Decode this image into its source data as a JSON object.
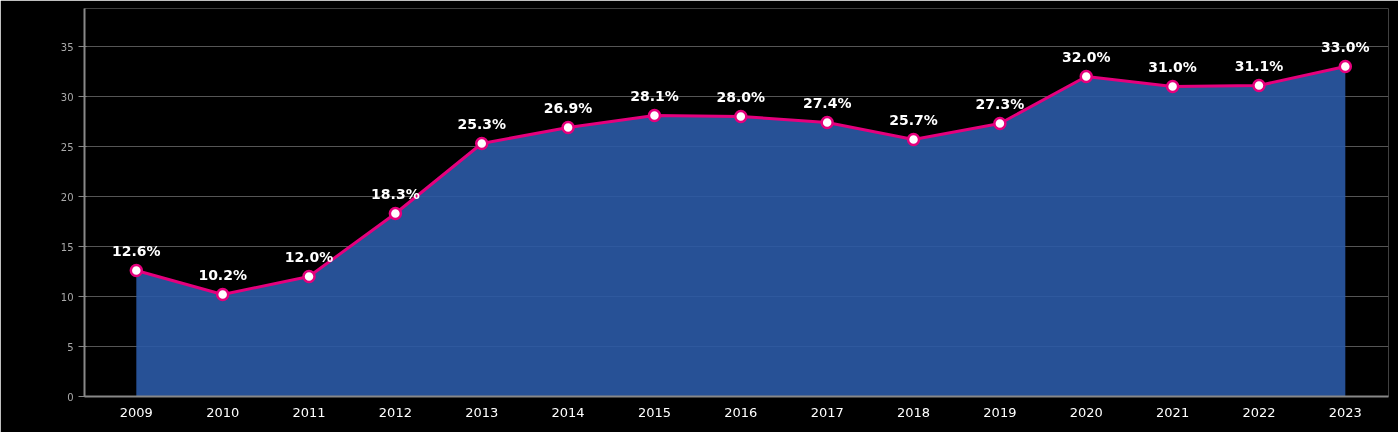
{
  "chart_data": {
    "type": "area",
    "categories": [
      "2009",
      "2010",
      "2011",
      "2012",
      "2013",
      "2014",
      "2015",
      "2016",
      "2017",
      "2018",
      "2019",
      "2020",
      "2021",
      "2022",
      "2023"
    ],
    "series": [
      {
        "color": "#2b5aa6",
        "values": [
          12.6,
          10.2,
          12.0,
          18.3,
          25.3,
          26.9,
          28.1,
          28.0,
          27.4,
          25.7,
          27.3,
          32.0,
          31.0,
          31.1,
          33.0
        ]
      },
      {
        "type": "line",
        "color": "#e5007d",
        "marker": "circle",
        "values": [
          12.6,
          10.2,
          12.0,
          18.3,
          25.3,
          26.9,
          28.1,
          28.0,
          27.4,
          25.7,
          27.3,
          32.0,
          31.0,
          31.1,
          33.0
        ],
        "value_labels": [
          "12.6%",
          "10.2%",
          "12.0%",
          "18.3%",
          "25.3%",
          "26.9%",
          "28.1%",
          "28.0%",
          "27.4%",
          "25.7%",
          "27.3%",
          "32.0%",
          "31.0%",
          "31.1%",
          "33.0%"
        ]
      }
    ],
    "ylim": [
      0,
      38.8
    ],
    "yticks": [
      0,
      5,
      10,
      15,
      20,
      25,
      30,
      35
    ],
    "grid": "y",
    "line_style": "solid"
  }
}
